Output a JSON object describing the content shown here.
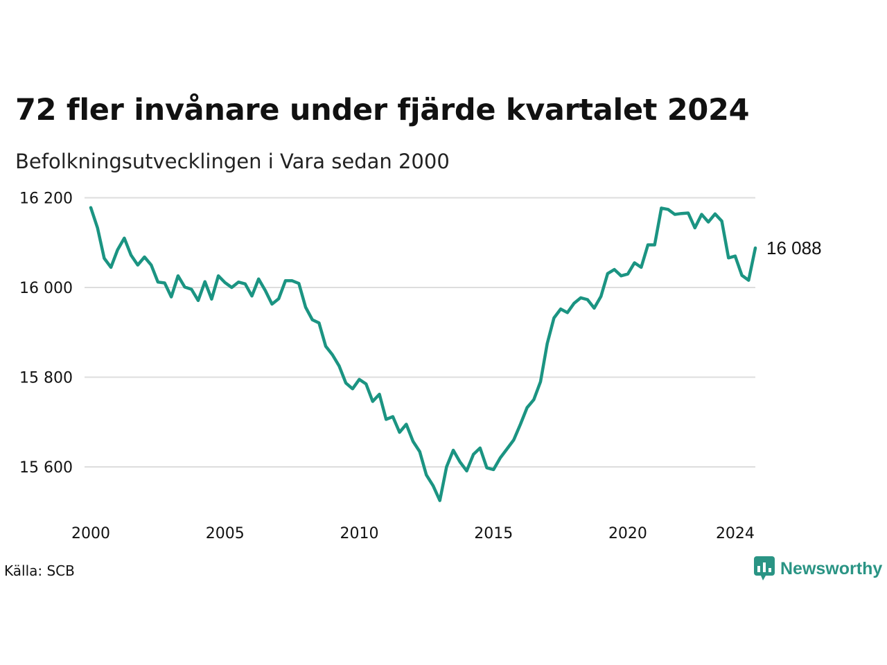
{
  "header": {
    "title": "72 fler invånare under fjärde kvartalet 2024",
    "subtitle": "Befolkningsutvecklingen i Vara sedan 2000"
  },
  "footer": {
    "source": "Källa: SCB",
    "brand": "Newsworthy"
  },
  "colors": {
    "line": "#1b9482",
    "grid": "#dddddd",
    "brand": "#2a9484"
  },
  "chart_data": {
    "type": "line",
    "title": "72 fler invånare under fjärde kvartalet 2024",
    "subtitle": "Befolkningsutvecklingen i Vara sedan 2000",
    "xlabel": "",
    "ylabel": "",
    "grid": true,
    "ylim": [
      15500,
      16200
    ],
    "xlim": [
      2000.0,
      2024.75
    ],
    "yticks": [
      15600,
      15800,
      16000,
      16200
    ],
    "ytick_labels": [
      "15 600",
      "15 800",
      "16 000",
      "16 200"
    ],
    "xticks": [
      2000,
      2005,
      2010,
      2015,
      2020,
      2024
    ],
    "xtick_labels": [
      "2000",
      "2005",
      "2010",
      "2015",
      "2020",
      "2024"
    ],
    "end_label": "16 088",
    "series": [
      {
        "x": [
          "2000Q1",
          "2000Q2",
          "2000Q3",
          "2000Q4",
          "2001Q1",
          "2001Q2",
          "2001Q3",
          "2001Q4",
          "2002Q1",
          "2002Q2",
          "2002Q3",
          "2002Q4",
          "2003Q1",
          "2003Q2",
          "2003Q3",
          "2003Q4",
          "2004Q1",
          "2004Q2",
          "2004Q3",
          "2004Q4",
          "2005Q1",
          "2005Q2",
          "2005Q3",
          "2005Q4",
          "2006Q1",
          "2006Q2",
          "2006Q3",
          "2006Q4",
          "2007Q1",
          "2007Q2",
          "2007Q3",
          "2007Q4",
          "2008Q1",
          "2008Q2",
          "2008Q3",
          "2008Q4",
          "2009Q1",
          "2009Q2",
          "2009Q3",
          "2009Q4",
          "2010Q1",
          "2010Q2",
          "2010Q3",
          "2010Q4",
          "2011Q1",
          "2011Q2",
          "2011Q3",
          "2011Q4",
          "2012Q1",
          "2012Q2",
          "2012Q3",
          "2012Q4",
          "2013Q1",
          "2013Q2",
          "2013Q3",
          "2013Q4",
          "2014Q1",
          "2014Q2",
          "2014Q3",
          "2014Q4",
          "2015Q1",
          "2015Q2",
          "2015Q3",
          "2015Q4",
          "2016Q1",
          "2016Q2",
          "2016Q3",
          "2016Q4",
          "2017Q1",
          "2017Q2",
          "2017Q3",
          "2017Q4",
          "2018Q1",
          "2018Q2",
          "2018Q3",
          "2018Q4",
          "2019Q1",
          "2019Q2",
          "2019Q3",
          "2019Q4",
          "2020Q1",
          "2020Q2",
          "2020Q3",
          "2020Q4",
          "2021Q1",
          "2021Q2",
          "2021Q3",
          "2021Q4",
          "2022Q1",
          "2022Q2",
          "2022Q3",
          "2022Q4",
          "2023Q1",
          "2023Q2",
          "2023Q3",
          "2023Q4",
          "2024Q1",
          "2024Q2",
          "2024Q3",
          "2024Q4"
        ],
        "values": [
          16178,
          16133,
          16065,
          16045,
          16084,
          16110,
          16072,
          16050,
          16068,
          16050,
          16012,
          16010,
          15979,
          16026,
          16001,
          15996,
          15971,
          16013,
          15974,
          16026,
          16011,
          16000,
          16012,
          16008,
          15981,
          16019,
          15993,
          15963,
          15975,
          16015,
          16015,
          16009,
          15956,
          15928,
          15921,
          15869,
          15850,
          15825,
          15787,
          15774,
          15795,
          15785,
          15746,
          15762,
          15706,
          15712,
          15677,
          15695,
          15657,
          15634,
          15582,
          15558,
          15525,
          15600,
          15637,
          15611,
          15591,
          15628,
          15642,
          15598,
          15594,
          15620,
          15640,
          15660,
          15695,
          15732,
          15750,
          15790,
          15875,
          15932,
          15952,
          15944,
          15965,
          15977,
          15973,
          15954,
          15980,
          16031,
          16040,
          16026,
          16030,
          16055,
          16045,
          16095,
          16095,
          16177,
          16174,
          16163,
          16165,
          16166,
          16133,
          16163,
          16146,
          16164,
          16148,
          16066,
          16070,
          16027,
          16016,
          16088
        ]
      }
    ]
  }
}
